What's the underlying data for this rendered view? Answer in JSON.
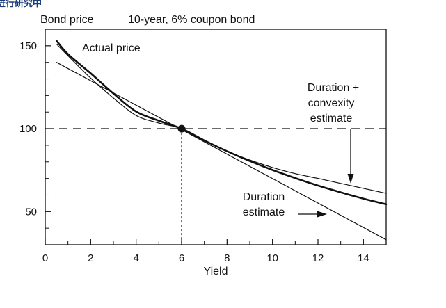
{
  "header": {
    "corner_fragment": "段进行研究中"
  },
  "chart_data": {
    "type": "line",
    "title": "10-year, 6% coupon bond",
    "ylabel": "Bond price",
    "xlabel": "Yield",
    "xlim": [
      0,
      15
    ],
    "ylim": [
      30,
      160
    ],
    "x_ticks": [
      0,
      2,
      4,
      6,
      8,
      10,
      12,
      14
    ],
    "y_ticks": [
      50,
      100,
      150
    ],
    "grid": false,
    "reference": {
      "x": 6,
      "y": 100
    },
    "series": [
      {
        "name": "Actual price",
        "style": "thick",
        "x": [
          0.5,
          1,
          2,
          3,
          4,
          5,
          6,
          7,
          8,
          9,
          10,
          11,
          12,
          13,
          14,
          15
        ],
        "y": [
          153,
          145,
          133.4,
          121.2,
          110.3,
          104.8,
          100,
          92.9,
          86.4,
          80.5,
          75.1,
          70.2,
          65.7,
          61.6,
          57.8,
          54.4
        ]
      },
      {
        "name": "Duration + convexity estimate",
        "style": "thin",
        "x": [
          0.5,
          1,
          2,
          3,
          4,
          5,
          6,
          7,
          8,
          9,
          10,
          11,
          12,
          13,
          14,
          15
        ],
        "y": [
          151,
          144,
          130.5,
          118.5,
          107.9,
          103.4,
          100,
          92.6,
          86.4,
          81.1,
          76.6,
          72.9,
          70.0,
          67.0,
          64.0,
          61.0
        ]
      },
      {
        "name": "Duration estimate",
        "style": "thin",
        "x": [
          0.5,
          15
        ],
        "y": [
          140,
          33
        ]
      }
    ],
    "annotations": {
      "actual": "Actual price",
      "convexity_line1": "Duration +",
      "convexity_line2": "convexity",
      "convexity_line3": "estimate",
      "duration_line1": "Duration",
      "duration_line2": "estimate"
    }
  }
}
